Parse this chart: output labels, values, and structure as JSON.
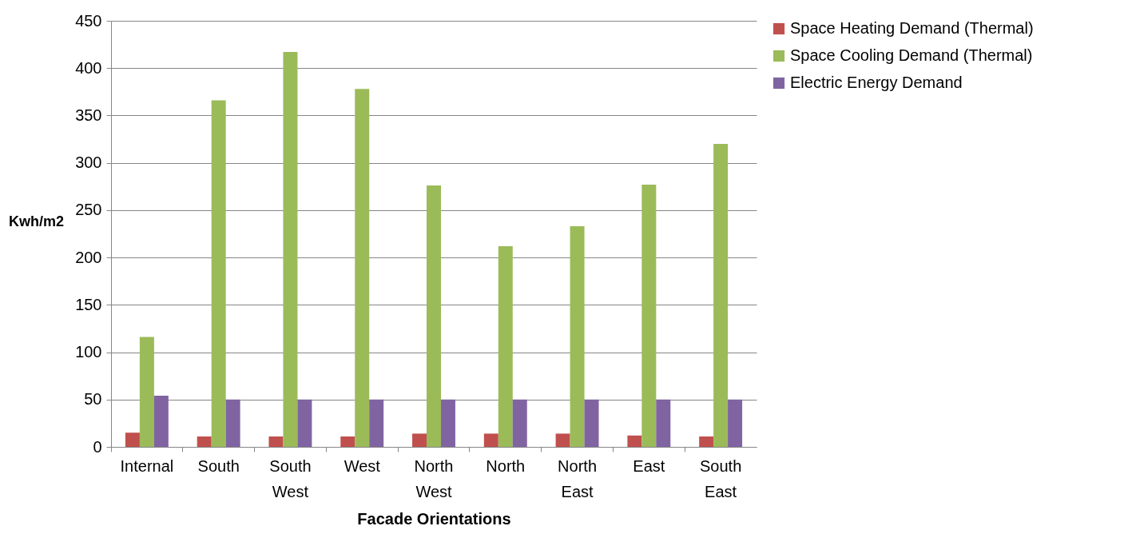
{
  "chart_data": {
    "type": "bar",
    "xlabel": "Facade Orientations",
    "ylabel": "Kwh/m2",
    "categories": [
      "Internal",
      "South",
      "South West",
      "West",
      "North West",
      "North",
      "North East",
      "East",
      "South East"
    ],
    "series": [
      {
        "name": "Space Heating Demand (Thermal)",
        "color": "#c0504d",
        "values": [
          15,
          11,
          11,
          11,
          14,
          14,
          14,
          12,
          11
        ]
      },
      {
        "name": "Space Cooling Demand (Thermal)",
        "color": "#9bbb59",
        "values": [
          116,
          366,
          417,
          378,
          276,
          212,
          233,
          277,
          320
        ]
      },
      {
        "name": "Electric Energy Demand",
        "color": "#8064a2",
        "values": [
          54,
          50,
          50,
          50,
          50,
          50,
          50,
          50,
          50
        ]
      }
    ],
    "ylim": [
      0,
      450
    ],
    "yticks": [
      0,
      50,
      100,
      150,
      200,
      250,
      300,
      350,
      400,
      450
    ],
    "grid": "y",
    "legend": "right"
  }
}
